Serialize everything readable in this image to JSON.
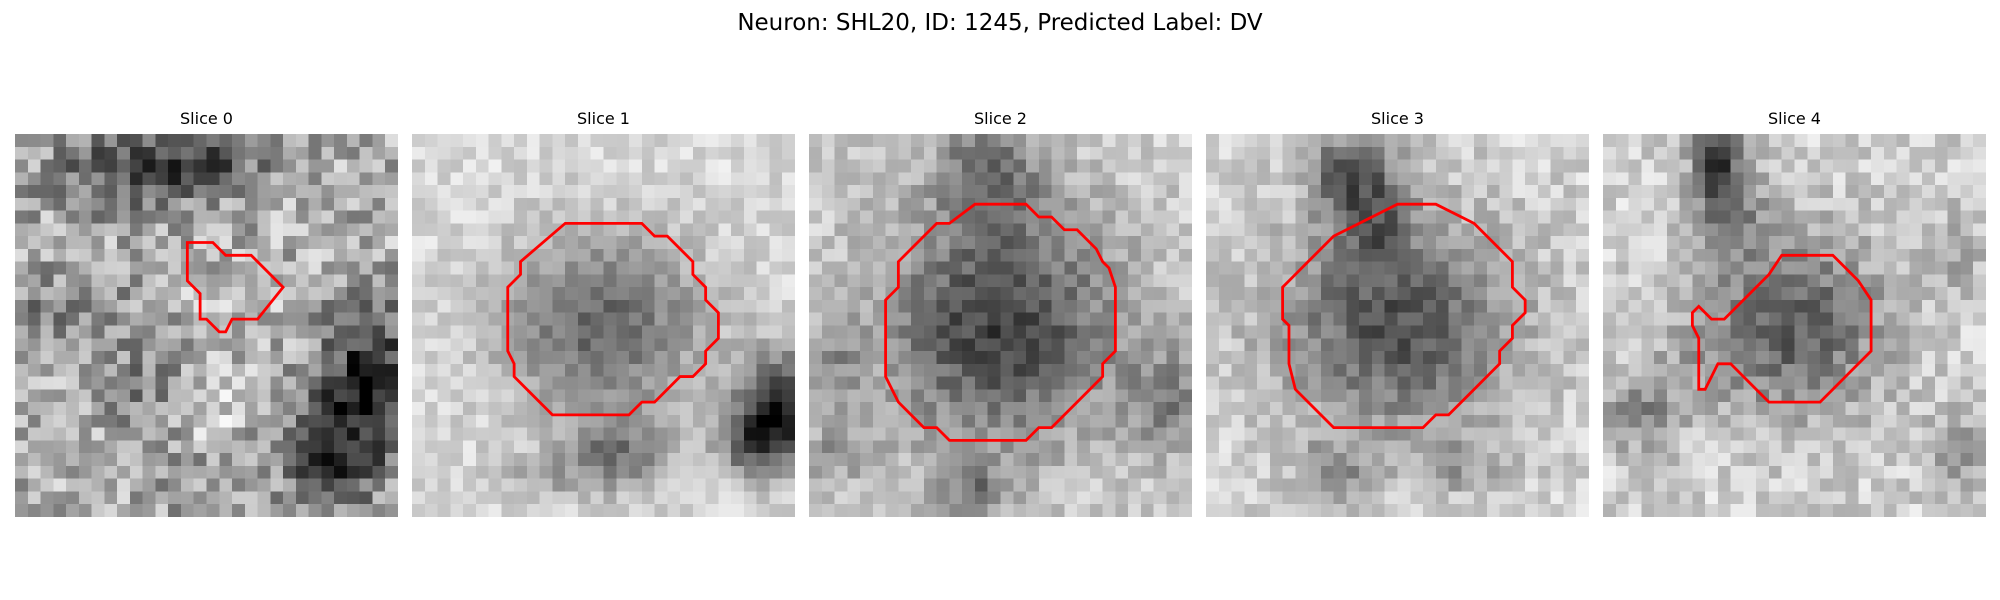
{
  "figure": {
    "title": "Neuron: SHL20, ID: 1245, Predicted Label: DV"
  },
  "colors": {
    "contour": "#ff0000",
    "background": "#ffffff"
  },
  "panels": [
    {
      "title": "Slice 0"
    },
    {
      "title": "Slice 1"
    },
    {
      "title": "Slice 2"
    },
    {
      "title": "Slice 3"
    },
    {
      "title": "Slice 4"
    }
  ]
}
